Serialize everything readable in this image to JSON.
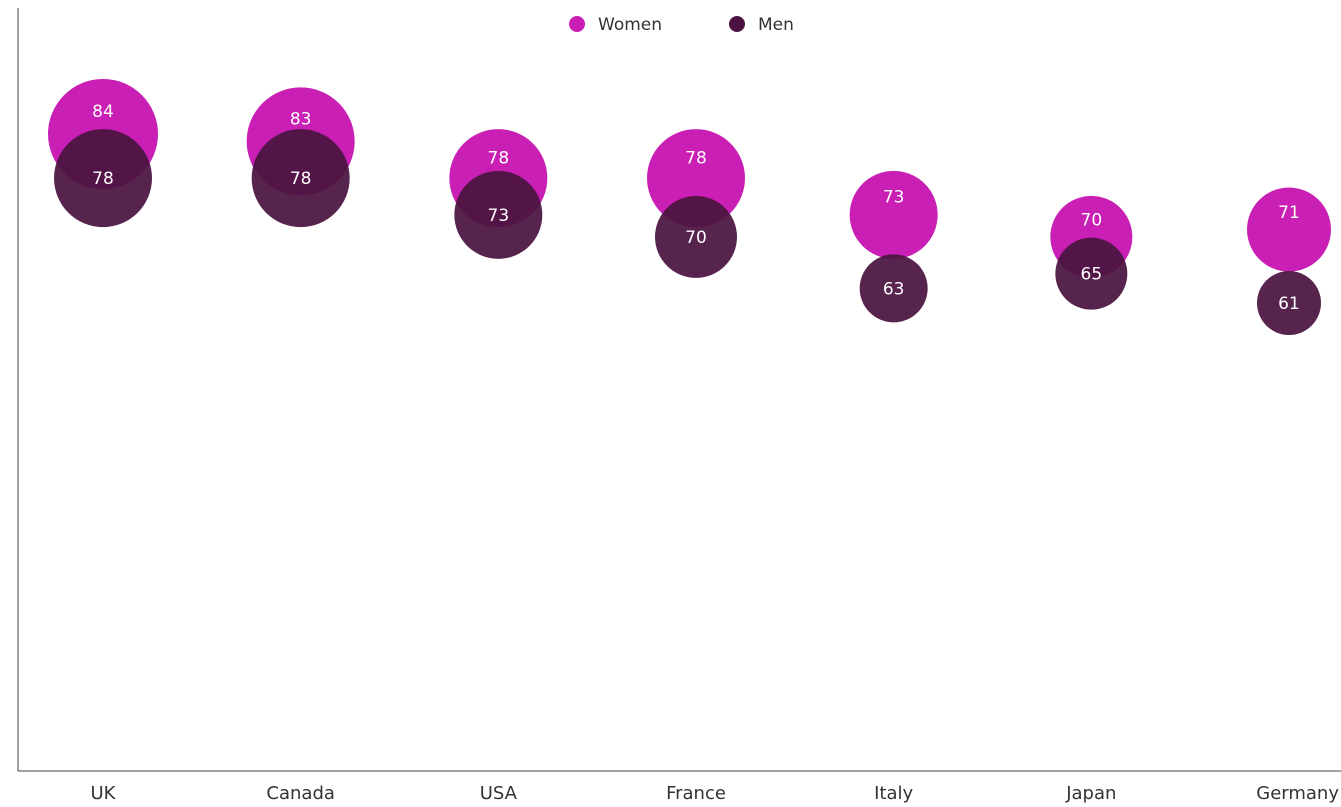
{
  "chart_data": {
    "type": "bubble",
    "categories": [
      "UK",
      "Canada",
      "USA",
      "France",
      "Italy",
      "Japan",
      "Germany"
    ],
    "series": [
      {
        "name": "Women",
        "color": "#c91fb4",
        "values": [
          84,
          83,
          78,
          78,
          73,
          70,
          71
        ]
      },
      {
        "name": "Men",
        "color": "#4a1340",
        "values": [
          78,
          78,
          73,
          70,
          63,
          65,
          61
        ]
      }
    ],
    "legend_position": "top-center",
    "grid": false
  }
}
